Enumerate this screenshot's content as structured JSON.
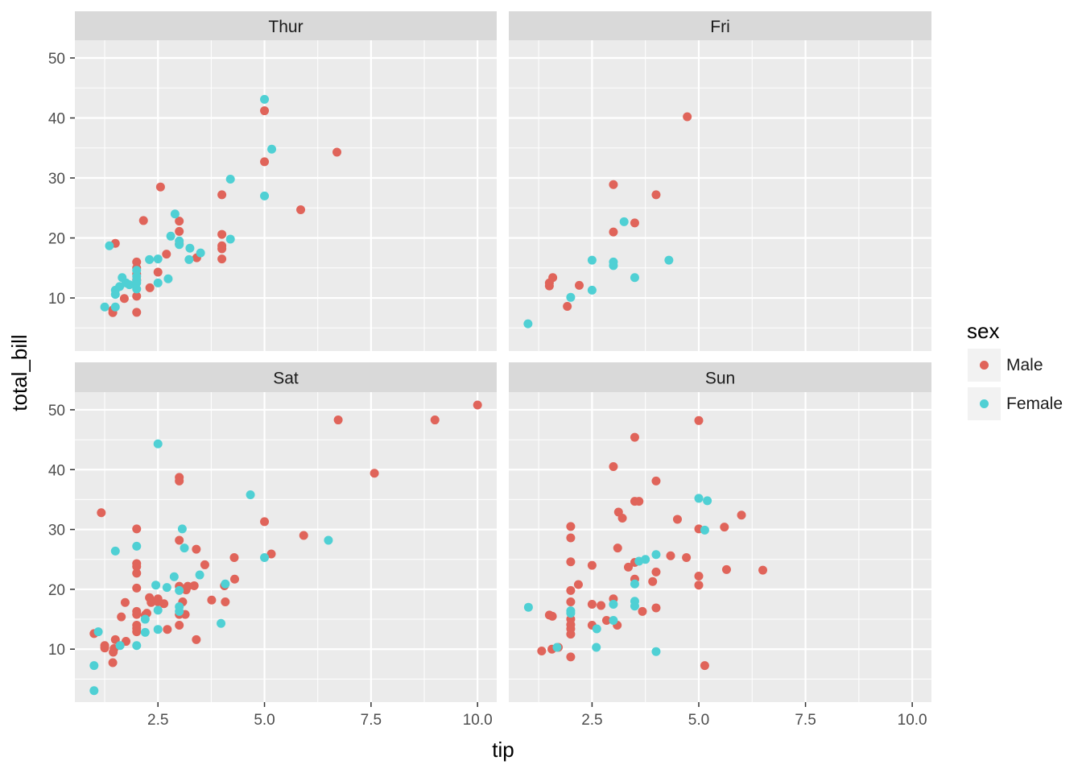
{
  "chart_data": {
    "type": "scatter",
    "facet_by": "day",
    "xlabel": "tip",
    "ylabel": "total_bill",
    "xlim": [
      0.55,
      10.45
    ],
    "ylim": [
      1.15,
      52.95
    ],
    "x_ticks": [
      2.5,
      5.0,
      7.5,
      10.0
    ],
    "x_tick_labels": [
      "2.5",
      "5.0",
      "7.5",
      "10.0"
    ],
    "y_ticks": [
      10,
      20,
      30,
      40,
      50
    ],
    "y_tick_labels": [
      "10",
      "20",
      "30",
      "40",
      "50"
    ],
    "grid": true,
    "legend": {
      "title": "sex",
      "position": "right",
      "entries": [
        {
          "label": "Male",
          "color": "#E0645A"
        },
        {
          "label": "Female",
          "color": "#4FD0D4"
        }
      ]
    },
    "colors": {
      "panel_bg": "#EBEBEB",
      "strip_bg": "#D9D9D9",
      "grid": "#FFFFFF",
      "male": "#E0645A",
      "female": "#4FD0D4"
    },
    "panels": [
      {
        "label": "Thur",
        "male": [
          [
            1.44,
            7.56
          ],
          [
            1.44,
            8.0
          ],
          [
            2.0,
            7.6
          ],
          [
            1.71,
            9.9
          ],
          [
            2.0,
            10.3
          ],
          [
            1.5,
            19.1
          ],
          [
            2.0,
            16.0
          ],
          [
            2.0,
            15.0
          ],
          [
            2.0,
            13.0
          ],
          [
            2.0,
            14.0
          ],
          [
            2.31,
            11.7
          ],
          [
            2.16,
            22.9
          ],
          [
            2.5,
            14.3
          ],
          [
            2.56,
            28.5
          ],
          [
            2.7,
            17.3
          ],
          [
            3.0,
            22.8
          ],
          [
            3.0,
            21.1
          ],
          [
            3.0,
            19.0
          ],
          [
            3.41,
            16.7
          ],
          [
            4.0,
            27.2
          ],
          [
            4.0,
            20.6
          ],
          [
            4.0,
            18.7
          ],
          [
            4.0,
            18.2
          ],
          [
            4.0,
            16.5
          ],
          [
            5.0,
            41.2
          ],
          [
            5.0,
            32.7
          ],
          [
            5.85,
            24.7
          ],
          [
            6.7,
            34.3
          ]
        ],
        "female": [
          [
            1.25,
            8.5
          ],
          [
            1.5,
            8.5
          ],
          [
            1.36,
            18.7
          ],
          [
            1.5,
            10.6
          ],
          [
            1.5,
            11.3
          ],
          [
            1.6,
            11.9
          ],
          [
            1.66,
            13.4
          ],
          [
            1.75,
            12.5
          ],
          [
            1.83,
            12.2
          ],
          [
            2.0,
            11.5
          ],
          [
            2.0,
            12.5
          ],
          [
            2.0,
            12.9
          ],
          [
            2.0,
            13.6
          ],
          [
            2.0,
            14.6
          ],
          [
            2.3,
            16.4
          ],
          [
            2.5,
            16.5
          ],
          [
            2.5,
            12.5
          ],
          [
            2.74,
            13.2
          ],
          [
            2.8,
            20.3
          ],
          [
            2.9,
            24.0
          ],
          [
            3.0,
            18.9
          ],
          [
            3.0,
            19.5
          ],
          [
            3.23,
            16.4
          ],
          [
            3.25,
            18.3
          ],
          [
            3.5,
            17.5
          ],
          [
            4.2,
            29.8
          ],
          [
            4.2,
            19.8
          ],
          [
            5.0,
            43.1
          ],
          [
            5.0,
            27.0
          ],
          [
            5.17,
            34.8
          ]
        ]
      },
      {
        "label": "Fri",
        "male": [
          [
            1.5,
            12.0
          ],
          [
            1.5,
            12.5
          ],
          [
            1.58,
            13.4
          ],
          [
            1.92,
            8.6
          ],
          [
            2.2,
            12.1
          ],
          [
            3.0,
            28.9
          ],
          [
            3.0,
            21.0
          ],
          [
            3.5,
            22.5
          ],
          [
            4.0,
            27.2
          ],
          [
            4.73,
            40.2
          ]
        ],
        "female": [
          [
            1.0,
            5.7
          ],
          [
            2.0,
            10.1
          ],
          [
            2.5,
            16.3
          ],
          [
            2.5,
            11.3
          ],
          [
            3.0,
            15.4
          ],
          [
            3.0,
            16.0
          ],
          [
            3.25,
            22.7
          ],
          [
            3.5,
            13.4
          ],
          [
            4.3,
            16.3
          ]
        ]
      },
      {
        "label": "Sat",
        "male": [
          [
            1.0,
            12.6
          ],
          [
            1.17,
            32.8
          ],
          [
            1.25,
            10.2
          ],
          [
            1.25,
            10.6
          ],
          [
            1.44,
            7.74
          ],
          [
            1.45,
            9.5
          ],
          [
            1.47,
            10.1
          ],
          [
            1.5,
            11.6
          ],
          [
            1.64,
            15.4
          ],
          [
            1.73,
            17.8
          ],
          [
            1.75,
            11.3
          ],
          [
            2.0,
            30.1
          ],
          [
            2.0,
            24.3
          ],
          [
            2.0,
            23.8
          ],
          [
            2.0,
            22.7
          ],
          [
            2.0,
            20.2
          ],
          [
            2.0,
            16.3
          ],
          [
            2.0,
            15.8
          ],
          [
            2.0,
            14.0
          ],
          [
            2.0,
            13.5
          ],
          [
            2.0,
            12.9
          ],
          [
            2.2,
            15.7
          ],
          [
            2.24,
            16.0
          ],
          [
            2.3,
            18.6
          ],
          [
            2.34,
            17.8
          ],
          [
            2.5,
            18.4
          ],
          [
            2.5,
            17.9
          ],
          [
            2.64,
            17.6
          ],
          [
            2.72,
            13.3
          ],
          [
            3.0,
            38.7
          ],
          [
            3.0,
            38.1
          ],
          [
            3.0,
            28.2
          ],
          [
            3.0,
            20.5
          ],
          [
            3.0,
            15.8
          ],
          [
            3.0,
            14.0
          ],
          [
            3.08,
            17.9
          ],
          [
            3.14,
            15.8
          ],
          [
            3.15,
            20.1
          ],
          [
            3.16,
            19.9
          ],
          [
            3.2,
            20.5
          ],
          [
            3.35,
            20.6
          ],
          [
            3.4,
            26.7
          ],
          [
            3.4,
            11.6
          ],
          [
            3.6,
            24.1
          ],
          [
            3.76,
            18.2
          ],
          [
            4.06,
            20.6
          ],
          [
            4.08,
            17.9
          ],
          [
            4.29,
            25.3
          ],
          [
            4.3,
            21.7
          ],
          [
            5.0,
            31.3
          ],
          [
            5.16,
            25.9
          ],
          [
            5.92,
            29.0
          ],
          [
            6.73,
            48.3
          ],
          [
            7.58,
            39.4
          ],
          [
            9.0,
            48.3
          ],
          [
            10.0,
            50.8
          ]
        ],
        "female": [
          [
            1.0,
            3.07
          ],
          [
            1.0,
            7.25
          ],
          [
            1.1,
            12.9
          ],
          [
            1.5,
            26.4
          ],
          [
            1.61,
            10.6
          ],
          [
            2.0,
            27.2
          ],
          [
            2.0,
            10.6
          ],
          [
            2.2,
            15.0
          ],
          [
            2.2,
            12.8
          ],
          [
            2.45,
            20.7
          ],
          [
            2.5,
            44.3
          ],
          [
            2.5,
            16.5
          ],
          [
            2.5,
            13.3
          ],
          [
            2.71,
            20.3
          ],
          [
            2.88,
            22.1
          ],
          [
            3.0,
            16.3
          ],
          [
            3.0,
            17.1
          ],
          [
            3.0,
            19.8
          ],
          [
            3.07,
            30.1
          ],
          [
            3.12,
            26.9
          ],
          [
            3.48,
            22.4
          ],
          [
            3.98,
            14.3
          ],
          [
            4.08,
            20.9
          ],
          [
            4.67,
            35.8
          ],
          [
            5.0,
            25.3
          ],
          [
            6.5,
            28.2
          ]
        ]
      },
      {
        "label": "Sun",
        "male": [
          [
            1.32,
            9.7
          ],
          [
            1.5,
            15.7
          ],
          [
            1.56,
            10.0
          ],
          [
            1.57,
            15.5
          ],
          [
            1.71,
            10.3
          ],
          [
            2.0,
            30.5
          ],
          [
            2.0,
            28.6
          ],
          [
            2.0,
            24.6
          ],
          [
            2.0,
            19.8
          ],
          [
            2.0,
            17.9
          ],
          [
            2.0,
            15.0
          ],
          [
            2.0,
            14.1
          ],
          [
            2.0,
            13.4
          ],
          [
            2.0,
            12.5
          ],
          [
            2.0,
            8.7
          ],
          [
            2.18,
            20.8
          ],
          [
            2.5,
            24.0
          ],
          [
            2.5,
            17.5
          ],
          [
            2.5,
            14.0
          ],
          [
            2.71,
            17.3
          ],
          [
            2.84,
            14.8
          ],
          [
            3.0,
            40.5
          ],
          [
            3.0,
            18.4
          ],
          [
            3.09,
            14.0
          ],
          [
            3.1,
            26.9
          ],
          [
            3.12,
            32.9
          ],
          [
            3.21,
            31.9
          ],
          [
            3.35,
            23.7
          ],
          [
            3.5,
            45.4
          ],
          [
            3.5,
            34.7
          ],
          [
            3.5,
            24.5
          ],
          [
            3.5,
            21.7
          ],
          [
            3.6,
            34.7
          ],
          [
            3.68,
            16.3
          ],
          [
            3.92,
            21.3
          ],
          [
            4.0,
            38.1
          ],
          [
            4.0,
            22.9
          ],
          [
            4.0,
            16.9
          ],
          [
            4.34,
            25.6
          ],
          [
            4.5,
            31.7
          ],
          [
            4.71,
            25.3
          ],
          [
            5.0,
            48.2
          ],
          [
            5.0,
            30.1
          ],
          [
            5.0,
            22.2
          ],
          [
            5.0,
            20.7
          ],
          [
            5.14,
            7.25
          ],
          [
            5.6,
            30.4
          ],
          [
            5.65,
            23.3
          ],
          [
            6.0,
            32.4
          ],
          [
            6.5,
            23.2
          ]
        ],
        "female": [
          [
            1.01,
            17.0
          ],
          [
            1.68,
            10.3
          ],
          [
            2.0,
            16.4
          ],
          [
            2.0,
            16.0
          ],
          [
            2.61,
            13.4
          ],
          [
            2.6,
            10.3
          ],
          [
            3.0,
            17.5
          ],
          [
            3.0,
            14.8
          ],
          [
            3.5,
            18.0
          ],
          [
            3.5,
            17.2
          ],
          [
            3.5,
            20.9
          ],
          [
            3.6,
            24.7
          ],
          [
            3.75,
            25.0
          ],
          [
            4.0,
            25.8
          ],
          [
            4.0,
            9.6
          ],
          [
            5.0,
            35.2
          ],
          [
            5.14,
            29.9
          ],
          [
            5.2,
            34.8
          ]
        ]
      }
    ]
  }
}
